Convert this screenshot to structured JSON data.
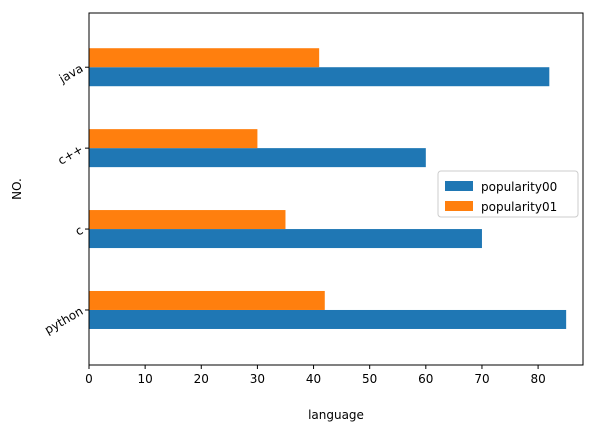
{
  "chart_data": {
    "type": "bar",
    "orientation": "horizontal",
    "categories": [
      "python",
      "c",
      "c++",
      "java"
    ],
    "series": [
      {
        "name": "popularity00",
        "values": [
          85,
          70,
          60,
          82
        ],
        "color": "#1f77b4"
      },
      {
        "name": "popularity01",
        "values": [
          42,
          35,
          30,
          41
        ],
        "color": "#ff7f0e"
      }
    ],
    "xlabel": "language",
    "ylabel": "NO.",
    "xlim": [
      0,
      88
    ],
    "xticks": [
      0,
      10,
      20,
      30,
      40,
      50,
      60,
      70,
      80
    ],
    "grid": false,
    "legend_position": "center-right"
  }
}
